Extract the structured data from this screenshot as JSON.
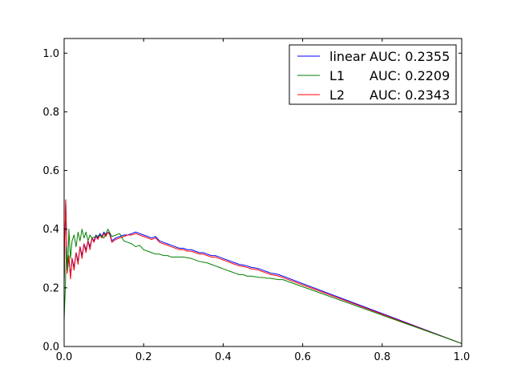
{
  "chart_data": {
    "type": "line",
    "title": "",
    "xlabel": "",
    "ylabel": "",
    "xlim": [
      0.0,
      1.0
    ],
    "ylim": [
      0.0,
      1.05
    ],
    "grid": false,
    "legend_placement": "top-right",
    "x_ticks": [
      0.0,
      0.2,
      0.4,
      0.6,
      0.8,
      1.0
    ],
    "x_tick_labels": [
      "0.0",
      "0.2",
      "0.4",
      "0.6",
      "0.8",
      "1.0"
    ],
    "y_ticks": [
      0.0,
      0.2,
      0.4,
      0.6,
      0.8,
      1.0
    ],
    "y_tick_labels": [
      "0.0",
      "0.2",
      "0.4",
      "0.6",
      "0.8",
      "1.0"
    ],
    "legend": [
      {
        "key": "linear",
        "label": "linear",
        "auc": "AUC: 0.2355",
        "color": "#0000ff"
      },
      {
        "key": "l1",
        "label": "L1",
        "auc": "AUC: 0.2209",
        "color": "#008000"
      },
      {
        "key": "l2",
        "label": "L2",
        "auc": "AUC: 0.2343",
        "color": "#ff0000"
      }
    ],
    "series": [
      {
        "key": "linear",
        "name": "linear",
        "color": "#0000ff",
        "x": [
          0.0,
          0.004,
          0.008,
          0.012,
          0.016,
          0.02,
          0.025,
          0.03,
          0.035,
          0.04,
          0.045,
          0.05,
          0.055,
          0.06,
          0.065,
          0.07,
          0.075,
          0.08,
          0.085,
          0.09,
          0.095,
          0.1,
          0.105,
          0.11,
          0.115,
          0.12,
          0.13,
          0.14,
          0.15,
          0.16,
          0.17,
          0.18,
          0.19,
          0.2,
          0.21,
          0.22,
          0.23,
          0.24,
          0.25,
          0.26,
          0.27,
          0.28,
          0.29,
          0.3,
          0.31,
          0.32,
          0.33,
          0.34,
          0.35,
          0.36,
          0.37,
          0.38,
          0.39,
          0.4,
          0.41,
          0.42,
          0.43,
          0.44,
          0.45,
          0.46,
          0.47,
          0.48,
          0.49,
          0.5,
          0.51,
          0.52,
          0.53,
          0.54,
          0.55,
          1.0
        ],
        "values": [
          0.22,
          0.5,
          0.26,
          0.3,
          0.24,
          0.3,
          0.27,
          0.32,
          0.29,
          0.34,
          0.31,
          0.35,
          0.33,
          0.36,
          0.34,
          0.37,
          0.36,
          0.38,
          0.37,
          0.385,
          0.375,
          0.39,
          0.38,
          0.39,
          0.385,
          0.36,
          0.37,
          0.375,
          0.38,
          0.38,
          0.385,
          0.39,
          0.385,
          0.38,
          0.375,
          0.37,
          0.375,
          0.36,
          0.355,
          0.35,
          0.345,
          0.34,
          0.335,
          0.335,
          0.33,
          0.33,
          0.325,
          0.32,
          0.32,
          0.315,
          0.31,
          0.31,
          0.305,
          0.3,
          0.295,
          0.29,
          0.285,
          0.28,
          0.278,
          0.275,
          0.27,
          0.268,
          0.265,
          0.26,
          0.255,
          0.25,
          0.248,
          0.245,
          0.24,
          0.01
        ]
      },
      {
        "key": "l2",
        "name": "L2",
        "color": "#ff0000",
        "x": [
          0.0,
          0.004,
          0.008,
          0.012,
          0.016,
          0.02,
          0.025,
          0.03,
          0.035,
          0.04,
          0.045,
          0.05,
          0.055,
          0.06,
          0.065,
          0.07,
          0.075,
          0.08,
          0.085,
          0.09,
          0.095,
          0.1,
          0.105,
          0.11,
          0.115,
          0.12,
          0.13,
          0.14,
          0.15,
          0.16,
          0.17,
          0.18,
          0.19,
          0.2,
          0.21,
          0.22,
          0.23,
          0.24,
          0.25,
          0.26,
          0.27,
          0.28,
          0.29,
          0.3,
          0.31,
          0.32,
          0.33,
          0.34,
          0.35,
          0.36,
          0.37,
          0.38,
          0.39,
          0.4,
          0.41,
          0.42,
          0.43,
          0.44,
          0.45,
          0.46,
          0.47,
          0.48,
          0.49,
          0.5,
          0.51,
          0.52,
          0.53,
          0.54,
          0.55,
          1.0
        ],
        "values": [
          0.22,
          0.5,
          0.25,
          0.31,
          0.23,
          0.3,
          0.26,
          0.32,
          0.28,
          0.34,
          0.3,
          0.35,
          0.32,
          0.36,
          0.33,
          0.37,
          0.355,
          0.375,
          0.365,
          0.38,
          0.37,
          0.385,
          0.375,
          0.39,
          0.38,
          0.355,
          0.365,
          0.37,
          0.375,
          0.38,
          0.38,
          0.385,
          0.38,
          0.375,
          0.37,
          0.365,
          0.37,
          0.355,
          0.35,
          0.345,
          0.34,
          0.335,
          0.33,
          0.33,
          0.325,
          0.325,
          0.32,
          0.315,
          0.315,
          0.31,
          0.305,
          0.305,
          0.3,
          0.295,
          0.29,
          0.285,
          0.28,
          0.275,
          0.273,
          0.27,
          0.265,
          0.263,
          0.26,
          0.255,
          0.25,
          0.245,
          0.243,
          0.24,
          0.235,
          0.01
        ]
      },
      {
        "key": "l1",
        "name": "L1",
        "color": "#008000",
        "x": [
          0.0,
          0.003,
          0.006,
          0.009,
          0.012,
          0.016,
          0.02,
          0.025,
          0.03,
          0.035,
          0.04,
          0.045,
          0.05,
          0.055,
          0.06,
          0.065,
          0.07,
          0.08,
          0.09,
          0.1,
          0.11,
          0.12,
          0.13,
          0.14,
          0.15,
          0.16,
          0.17,
          0.18,
          0.19,
          0.2,
          0.21,
          0.22,
          0.23,
          0.24,
          0.25,
          0.26,
          0.27,
          0.28,
          0.29,
          0.3,
          0.32,
          0.34,
          0.36,
          0.37,
          0.38,
          0.39,
          0.4,
          0.41,
          0.42,
          0.43,
          0.44,
          0.45,
          0.46,
          0.47,
          0.48,
          0.49,
          0.5,
          0.51,
          0.52,
          0.53,
          0.54,
          0.55,
          1.0
        ],
        "values": [
          0.09,
          0.2,
          0.34,
          0.26,
          0.4,
          0.3,
          0.36,
          0.38,
          0.34,
          0.39,
          0.36,
          0.4,
          0.37,
          0.39,
          0.36,
          0.38,
          0.37,
          0.375,
          0.38,
          0.37,
          0.4,
          0.375,
          0.38,
          0.385,
          0.36,
          0.355,
          0.35,
          0.34,
          0.345,
          0.33,
          0.325,
          0.32,
          0.315,
          0.315,
          0.31,
          0.31,
          0.305,
          0.305,
          0.305,
          0.305,
          0.3,
          0.29,
          0.285,
          0.28,
          0.275,
          0.27,
          0.265,
          0.26,
          0.255,
          0.25,
          0.245,
          0.245,
          0.24,
          0.24,
          0.238,
          0.236,
          0.235,
          0.233,
          0.232,
          0.23,
          0.228,
          0.228,
          0.01
        ]
      }
    ]
  }
}
